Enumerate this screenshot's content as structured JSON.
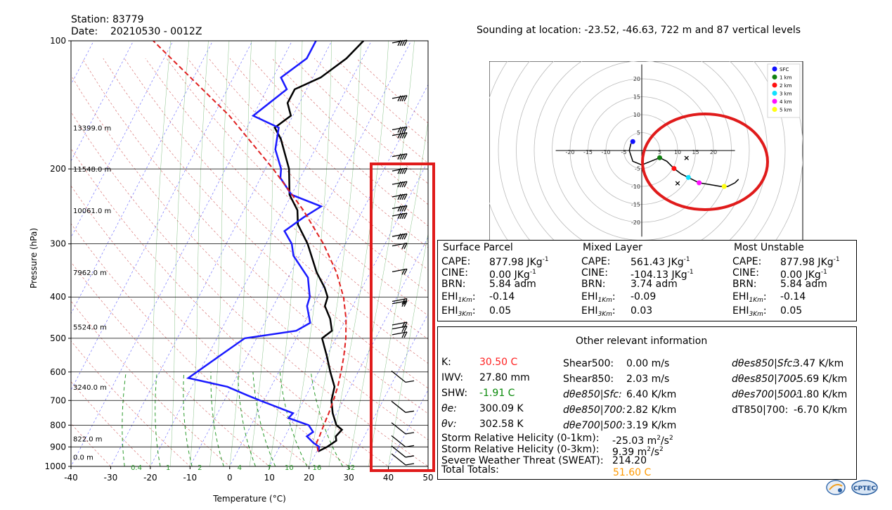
{
  "header": {
    "station_label": "Station:",
    "station_value": "83779",
    "date_label": "Date:",
    "date_value": "20210530 - 0012Z",
    "sounding_info": "Sounding at location: -23.52, -46.63, 722 m and 87 vertical levels"
  },
  "colors": {
    "temperature": "#000000",
    "dewpoint": "#1a1aff",
    "parcel": "#e02020",
    "dry_adiabat": "#c83a3a",
    "moist_adiabat": "#3a9a3a",
    "isotherm": "#3a3aff",
    "mixing_ratio": "#2a9a2a",
    "highlight_box": "#e01b1b",
    "k_index": "#ff2020",
    "shw": "#0a8a0a",
    "total_totals": "#ff9900"
  },
  "chart_data": [
    {
      "type": "line",
      "name": "skew-t",
      "xlabel": "Temperature (°C)",
      "ylabel": "Pressure (hPa)",
      "xlim": [
        -40,
        50
      ],
      "ylim": [
        1000,
        100
      ],
      "x_ticks": [
        "-40",
        "-30",
        "-20",
        "-10",
        "0",
        "10",
        "20",
        "30",
        "40",
        "50"
      ],
      "y_ticks": [
        "100",
        "200",
        "300",
        "400",
        "500",
        "600",
        "700",
        "800",
        "900",
        "1000"
      ],
      "heights": [
        {
          "p": 160,
          "label": "13399.0 m"
        },
        {
          "p": 200,
          "label": "11548.0 m"
        },
        {
          "p": 250,
          "label": "10061.0 m"
        },
        {
          "p": 350,
          "label": "7962.0 m"
        },
        {
          "p": 470,
          "label": "5524.0 m"
        },
        {
          "p": 650,
          "label": "3240.0 m"
        },
        {
          "p": 860,
          "label": "822.0 m"
        },
        {
          "p": 950,
          "label": "0.0 m"
        }
      ],
      "mixing_ratio_labels": [
        "0.4",
        "1",
        "2",
        "4",
        "7",
        "10",
        "16",
        "32"
      ],
      "series": [
        {
          "name": "",
          "values": [
            [
              922,
              20.3
            ],
            [
              900,
              22.0
            ],
            [
              870,
              23.5
            ],
            [
              850,
              22.8
            ],
            [
              820,
              23.5
            ],
            [
              800,
              21.5
            ],
            [
              750,
              19.0
            ],
            [
              700,
              17.0
            ],
            [
              650,
              16.0
            ],
            [
              600,
              13.0
            ],
            [
              550,
              10.0
            ],
            [
              500,
              6.5
            ],
            [
              480,
              8.0
            ],
            [
              450,
              6.0
            ],
            [
              420,
              3.0
            ],
            [
              400,
              2.5
            ],
            [
              380,
              0.5
            ],
            [
              350,
              -3.5
            ],
            [
              300,
              -9.5
            ],
            [
              270,
              -14.5
            ],
            [
              250,
              -16.5
            ],
            [
              230,
              -20.5
            ],
            [
              200,
              -24.0
            ],
            [
              170,
              -30.0
            ],
            [
              160,
              -33.0
            ],
            [
              150,
              -30.5
            ],
            [
              140,
              -33.0
            ],
            [
              130,
              -33.0
            ],
            [
              122,
              -28.0
            ],
            [
              110,
              -24.0
            ],
            [
              100,
              -22.0
            ]
          ]
        },
        {
          "name": "",
          "values": [
            [
              922,
              20.3
            ],
            [
              900,
              20.0
            ],
            [
              880,
              18.0
            ],
            [
              850,
              15.5
            ],
            [
              830,
              16.5
            ],
            [
              800,
              14.5
            ],
            [
              770,
              8.5
            ],
            [
              750,
              9.0
            ],
            [
              700,
              -1.0
            ],
            [
              680,
              -5.0
            ],
            [
              650,
              -11.0
            ],
            [
              620,
              -22.0
            ],
            [
              550,
              -17.0
            ],
            [
              500,
              -13.0
            ],
            [
              480,
              -1.0
            ],
            [
              460,
              1.5
            ],
            [
              420,
              -1.5
            ],
            [
              400,
              -2.0
            ],
            [
              360,
              -5.0
            ],
            [
              320,
              -11.5
            ],
            [
              300,
              -13.5
            ],
            [
              280,
              -17.0
            ],
            [
              260,
              -14.0
            ],
            [
              245,
              -11.0
            ],
            [
              230,
              -20.0
            ],
            [
              210,
              -25.0
            ],
            [
              200,
              -26.0
            ],
            [
              180,
              -30.0
            ],
            [
              160,
              -32.0
            ],
            [
              150,
              -40.0
            ],
            [
              130,
              -35.0
            ],
            [
              122,
              -38.0
            ],
            [
              110,
              -34.0
            ],
            [
              100,
              -34.0
            ]
          ]
        },
        {
          "name": "",
          "values": [
            [
              922,
              20.3
            ],
            [
              880,
              18.8
            ],
            [
              850,
              18.7
            ],
            [
              800,
              18.3
            ],
            [
              750,
              18.0
            ],
            [
              700,
              17.5
            ],
            [
              650,
              16.8
            ],
            [
              600,
              15.7
            ],
            [
              550,
              14.3
            ],
            [
              500,
              12.5
            ],
            [
              450,
              10.0
            ],
            [
              400,
              6.5
            ],
            [
              350,
              1.5
            ],
            [
              300,
              -5.5
            ],
            [
              250,
              -15.0
            ],
            [
              200,
              -28.0
            ],
            [
              150,
              -46.0
            ],
            [
              100,
              -75.0
            ]
          ]
        }
      ],
      "wind_barbs": [
        "100",
        "135",
        "160",
        "165",
        "185",
        "200",
        "215",
        "230",
        "245",
        "255",
        "285",
        "300",
        "345",
        "405",
        "410",
        "460",
        "470",
        "485",
        "620",
        "730",
        "820",
        "880",
        "930",
        "970"
      ]
    },
    {
      "type": "scatter",
      "name": "hodograph",
      "xlim": [
        -25,
        25
      ],
      "ylim": [
        -25,
        25
      ],
      "tick_labels_x": [
        "-20",
        "-15",
        "-10",
        "-5",
        "5",
        "10",
        "15",
        "20"
      ],
      "tick_labels_y": [
        "20",
        "15",
        "10",
        "5",
        "-5",
        "-10",
        "-15",
        "-20"
      ],
      "legend": [
        "SFC",
        "1 km",
        "2 km",
        "3 km",
        "4 km",
        "5 km"
      ],
      "legend_colors": [
        "#1010ff",
        "#108010",
        "#ff1010",
        "#10e0ff",
        "#ff10ff",
        "#ffff10"
      ],
      "legend_placement": "top-right",
      "line": [
        [
          -3,
          2
        ],
        [
          -3.5,
          0
        ],
        [
          -2.5,
          -3
        ],
        [
          0,
          -4
        ],
        [
          5,
          -2
        ],
        [
          7,
          -3
        ],
        [
          9,
          -5
        ],
        [
          11,
          -6.5
        ],
        [
          13,
          -7.5
        ],
        [
          16,
          -9
        ],
        [
          19,
          -9.5
        ],
        [
          22,
          -10
        ],
        [
          24,
          -10
        ],
        [
          26,
          -9
        ],
        [
          27,
          -8
        ]
      ],
      "points": [
        [
          -2.5,
          2.5
        ],
        [
          5,
          -2
        ],
        [
          9,
          -5
        ],
        [
          13,
          -7.5
        ],
        [
          16,
          -9
        ],
        [
          23,
          -10
        ]
      ],
      "markers_x": [
        [
          12.5,
          -2
        ],
        [
          10,
          -9
        ]
      ]
    }
  ],
  "panel_parcel": {
    "sfc_title": "Surface Parcel",
    "ml_title": "Mixed Layer",
    "mu_title": "Most Unstable",
    "cape_label": "CAPE:",
    "cine_label": "CINE:",
    "brn_label": "BRN:",
    "ehi_label": "EHI",
    "ehi1_sub": "1Km",
    "ehi3_sub": "3Km",
    "sfc": {
      "cape": "877.98 JKg",
      "cine": "0.00 JKg",
      "brn": "5.84 adm",
      "ehi1": "-0.14",
      "ehi3": "0.05"
    },
    "ml": {
      "cape": "561.43 JKg",
      "cine": "-104.13 JKg",
      "brn": "3.74 adm",
      "ehi1": "-0.09",
      "ehi3": "0.03"
    },
    "mu": {
      "cape": "877.98 JKg",
      "cine": "0.00 JKg",
      "brn": "5.84 adm",
      "ehi1": "-0.14",
      "ehi3": "0.05"
    },
    "unit_sup": "-1"
  },
  "panel_other": {
    "title": "Other relevant information",
    "k_label": "K:",
    "k_value": "30.50 C",
    "iwv_label": "IWV:",
    "iwv_value": "27.80 mm",
    "shw_label": "SHW:",
    "shw_value": "-1.91 C",
    "thetae_label": "θe:",
    "thetae_value": "300.09 K",
    "thetav_label": "θv:",
    "thetav_value": "302.58 K",
    "shear500_label": "Shear500:",
    "shear500_value": "0.00 m/s",
    "shear850_label": "Shear850:",
    "shear850_value": "2.03 m/s",
    "dte850sfc_label": "dθe850|Sfc:",
    "dte850sfc_value": "6.40 K/km",
    "dte850700_label": "dθe850|700:",
    "dte850700_value": "2.82 K/km",
    "dte700500_label": "dθe700|500:",
    "dte700500_value": "3.19 K/km",
    "dtes850sfc_label": "dθes850|Sfc:",
    "dtes850sfc_value": "3.47 K/km",
    "dtes850700_label": "dθes850|700:",
    "dtes850700_value": "-5.69 K/km",
    "dtes700500_label": "dθes700|500:",
    "dtes700500_value": "-1.80 K/km",
    "dt850700_label": "dT850|700:",
    "dt850700_value": "-6.70 K/km",
    "srh1_label": "Storm Relative Helicity (0-1km):",
    "srh1_value": "-25.03 m",
    "srh3_label": "Storm Relative Helicity (0-3km):",
    "srh3_value": "9.39 m",
    "srh_unit": "/s",
    "sweat_label": "Severe Weather Threat (SWEAT):",
    "sweat_value": "214.20",
    "tt_label": "Total Totals:",
    "tt_value": "51.60 C"
  },
  "logos": [
    "inpe-logo",
    "cptec-logo"
  ]
}
